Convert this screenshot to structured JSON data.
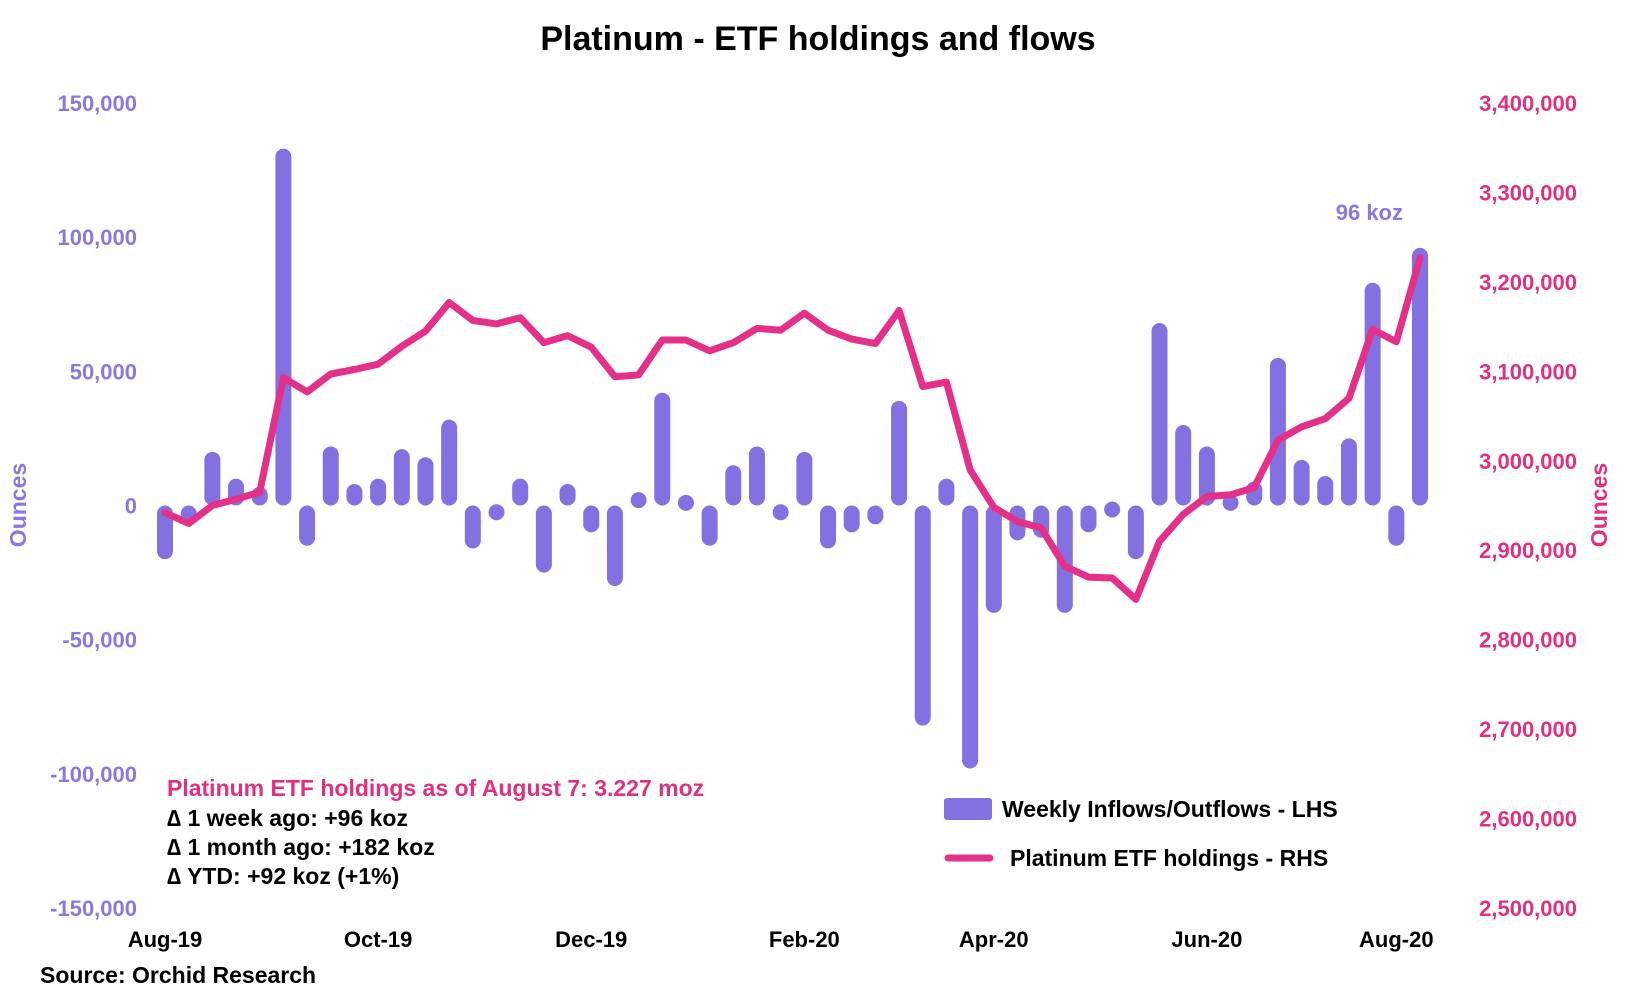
{
  "chart_data": {
    "type": "bar+line",
    "title": "Platinum - ETF holdings and flows",
    "x_tick_labels": [
      "Aug-19",
      "Oct-19",
      "Dec-19",
      "Feb-20",
      "Apr-20",
      "Jun-20",
      "Aug-20"
    ],
    "x_tick_week_index": [
      0,
      9,
      18,
      27,
      35,
      44,
      52
    ],
    "left_axis": {
      "label": "Ounces",
      "range": [
        -150000,
        150000
      ],
      "ticks": [
        -150000,
        -100000,
        -50000,
        0,
        50000,
        100000,
        150000
      ],
      "tick_labels": [
        "-150,000",
        "-100,000",
        "-50,000",
        "0",
        "50,000",
        "100,000",
        "150,000"
      ]
    },
    "right_axis": {
      "label": "Ounces",
      "range": [
        2500000,
        3400000
      ],
      "ticks": [
        2500000,
        2600000,
        2700000,
        2800000,
        2900000,
        3000000,
        3100000,
        3200000,
        3300000,
        3400000
      ],
      "tick_labels": [
        "2,500,000",
        "2,600,000",
        "2,700,000",
        "2,800,000",
        "2,900,000",
        "3,000,000",
        "3,100,000",
        "3,200,000",
        "3,300,000",
        "3,400,000"
      ]
    },
    "series": [
      {
        "name": "Weekly Inflows/Outflows - LHS",
        "type": "bar",
        "axis": "left",
        "color": "#8471e1",
        "values": [
          -20000,
          -7000,
          20000,
          10000,
          7000,
          133000,
          -15000,
          22000,
          8000,
          10000,
          21000,
          18000,
          32000,
          -16000,
          -5000,
          10000,
          -25000,
          8000,
          -10000,
          -30000,
          4000,
          42000,
          2000,
          -15000,
          15000,
          22000,
          -5000,
          20000,
          -16000,
          -10000,
          -7000,
          39000,
          -82000,
          10000,
          -98000,
          -40000,
          -13000,
          -12000,
          -40000,
          -10000,
          -3000,
          -20000,
          68000,
          30000,
          22000,
          2000,
          9000,
          55000,
          17000,
          11000,
          25000,
          83000,
          -15000,
          96000
        ]
      },
      {
        "name": "Platinum ETF holdings - RHS",
        "type": "line",
        "axis": "right",
        "color": "#e5308a",
        "values": [
          2942000,
          2930000,
          2950000,
          2957000,
          2965000,
          3093000,
          3077000,
          3097000,
          3102000,
          3108000,
          3128000,
          3145000,
          3177000,
          3157000,
          3153000,
          3160000,
          3132000,
          3140000,
          3127000,
          3094000,
          3096000,
          3135000,
          3135000,
          3123000,
          3132000,
          3148000,
          3146000,
          3165000,
          3146000,
          3136000,
          3131000,
          3168000,
          3083000,
          3088000,
          2990000,
          2948000,
          2932000,
          2925000,
          2882000,
          2870000,
          2869000,
          2845000,
          2910000,
          2940000,
          2960000,
          2962000,
          2970000,
          3023000,
          3038000,
          3047000,
          3070000,
          3147000,
          3133000,
          3227000
        ]
      }
    ],
    "peak_annotation": "96 koz",
    "annotation": {
      "title": "Platinum ETF holdings as of August 7: 3.227 moz",
      "lines": [
        "∆ 1 week ago: +96 koz",
        "∆ 1 month ago: +182 koz",
        "∆ YTD: +92 koz (+1%)"
      ]
    },
    "legend": {
      "bars": "Weekly Inflows/Outflows - LHS",
      "line": "Platinum ETF holdings - RHS",
      "position": "bottom-right"
    },
    "source": "Source: Orchid Research"
  }
}
